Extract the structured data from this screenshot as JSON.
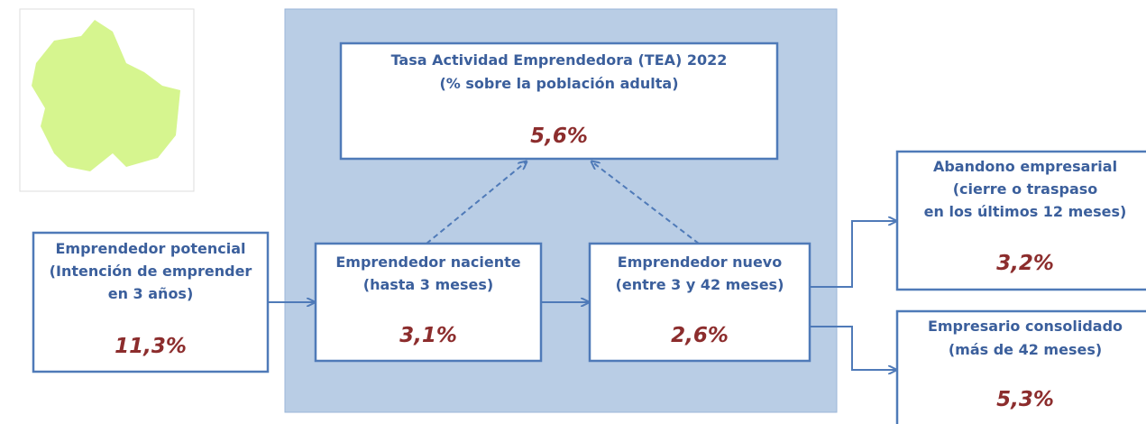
{
  "nodes": [
    {
      "lines": [
        "Tasa Actividad Emprendedora (TEA) 2022",
        "(% sobre la población adulta)"
      ],
      "value": "5,6%"
    },
    {
      "lines": [
        "Emprendedor potencial",
        "(Intención de emprender",
        "en 3 años)"
      ],
      "value": "11,3%"
    },
    {
      "lines": [
        "Emprendedor naciente",
        "(hasta 3 meses)"
      ],
      "value": "3,1%"
    },
    {
      "lines": [
        "Emprendedor nuevo",
        "(entre 3 y 42 meses)"
      ],
      "value": "2,6%"
    },
    {
      "lines": [
        "Abandono empresarial",
        "(cierre o traspaso",
        "en los últimos 12 meses)"
      ],
      "value": "3,2%"
    },
    {
      "lines": [
        "Empresario consolidado",
        "(más de 42 meses)"
      ],
      "value": "5,3%"
    }
  ]
}
